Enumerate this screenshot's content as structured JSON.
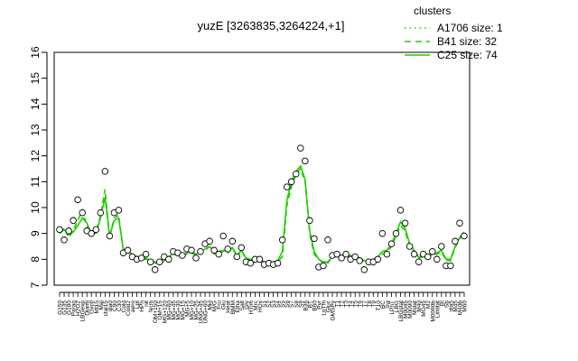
{
  "chart_data": {
    "type": "line",
    "title": "yuzE [3263835,3264224,+1]",
    "ylim": [
      7,
      16
    ],
    "yticks": [
      "7",
      "8",
      "9",
      "10",
      "11",
      "12",
      "13",
      "14",
      "15",
      "16"
    ],
    "legend": {
      "title": "clusters",
      "placement": "top-right",
      "entries": [
        {
          "label": "A1706 size: 1",
          "style": "dotted"
        },
        {
          "label": "B41 size: 32",
          "style": "dashed"
        },
        {
          "label": "C25 size: 74",
          "style": "solid"
        }
      ]
    },
    "color": "#22cc00",
    "x_labels": [
      "G150",
      "G135",
      "G180",
      "Paraq",
      "H2O2",
      "LBGexp",
      "Diami",
      "Oxctl",
      "Mt15",
      "Mal",
      "ctal15",
      "dia0",
      "C90",
      "C30",
      "Cold",
      "Cold2",
      "aero",
      "Lpt",
      "HPh",
      "nit",
      "ferm",
      "OM+150",
      "OM+15",
      "MG+120",
      "MG+60",
      "MG+45",
      "MG+30",
      "MG+15",
      "MG+5",
      "MG+10",
      "MG+25",
      "UNG+45",
      "UNG+60",
      "Mid",
      "M/G",
      "Fru",
      "Glu",
      "Heat",
      "BMM",
      "Etha",
      "Salt",
      "Gly",
      "HTim",
      "Mrc",
      "HOx",
      "S1",
      "S2",
      "S3",
      "S4",
      "S5",
      "S6",
      "S7",
      "S8",
      "S9",
      "B36",
      "BT",
      "B60",
      "Pyr",
      "LoTm",
      "Gluc",
      "GMSPy",
      "T1",
      "T2",
      "T3",
      "T4",
      "T5",
      "T6",
      "T7",
      "T8",
      "T9",
      "T10",
      "BC",
      "Sw",
      "LPhT",
      "LBG",
      "LBGstat",
      "M0045",
      "M0090",
      "Mstat",
      "M40",
      "MG45",
      "M2",
      "M0090b",
      "Limitat",
      "BI",
      "Sb",
      "dia5",
      "M45",
      "M40b",
      "M60"
    ],
    "series": [
      {
        "values": [
          9.05,
          9.2,
          8.85,
          9.1,
          9.5,
          9.9,
          9.3,
          8.95,
          9.05,
          9.7,
          10.7,
          8.85,
          9.6,
          9.7,
          8.35,
          8.3,
          8.15,
          8.05,
          8.0,
          8.05,
          7.95,
          7.9,
          7.8,
          7.95,
          8.05,
          8.2,
          8.15,
          8.1,
          8.2,
          8.25,
          8.15,
          8.3,
          8.35,
          8.5,
          8.2,
          8.25,
          8.3,
          8.25,
          8.45,
          8.1,
          8.35,
          8.0,
          7.95,
          7.95,
          8.0,
          7.85,
          7.85,
          7.85,
          7.9,
          8.1,
          10.1,
          10.8,
          11.3,
          11.5,
          11.0,
          9.0,
          8.2,
          8.0,
          7.85,
          7.85,
          8.1,
          8.1,
          8.1,
          8.15,
          8.1,
          8.05,
          8.0,
          7.9,
          7.85,
          7.95,
          8.0,
          8.2,
          8.25,
          8.5,
          8.9,
          9.3,
          9.1,
          8.5,
          8.3,
          8.05,
          8.1,
          8.1,
          8.15,
          8.2,
          8.3,
          7.95,
          7.95,
          8.45,
          8.8,
          9.0
        ]
      },
      {
        "values": [
          9.0,
          9.15,
          8.95,
          9.05,
          9.3,
          9.6,
          9.4,
          9.0,
          9.0,
          9.6,
          10.4,
          8.9,
          9.5,
          9.6,
          8.4,
          8.3,
          8.2,
          8.1,
          8.0,
          8.0,
          7.95,
          7.85,
          7.85,
          7.95,
          8.1,
          8.25,
          8.2,
          8.15,
          8.25,
          8.3,
          8.2,
          8.3,
          8.4,
          8.5,
          8.3,
          8.3,
          8.35,
          8.3,
          8.45,
          8.15,
          8.35,
          8.05,
          8.0,
          7.95,
          8.0,
          7.9,
          7.9,
          7.9,
          7.95,
          8.3,
          10.3,
          11.0,
          11.4,
          11.6,
          11.1,
          9.1,
          8.3,
          8.0,
          7.9,
          7.9,
          8.1,
          8.15,
          8.15,
          8.2,
          8.15,
          8.1,
          8.05,
          7.95,
          7.9,
          8.0,
          8.1,
          8.3,
          8.35,
          8.6,
          9.0,
          9.45,
          9.2,
          8.6,
          8.35,
          8.1,
          8.15,
          8.15,
          8.2,
          8.25,
          8.35,
          8.0,
          8.0,
          8.5,
          8.85,
          9.05
        ]
      }
    ],
    "points": [
      9.15,
      8.75,
      9.1,
      9.5,
      10.3,
      9.8,
      9.1,
      9.0,
      9.15,
      9.8,
      11.4,
      8.9,
      9.8,
      9.9,
      8.25,
      8.35,
      8.1,
      8.0,
      8.05,
      8.2,
      7.9,
      7.6,
      7.9,
      8.1,
      8.0,
      8.3,
      8.25,
      8.15,
      8.4,
      8.35,
      8.05,
      8.3,
      8.6,
      8.7,
      8.35,
      8.2,
      8.9,
      8.4,
      8.7,
      8.1,
      8.45,
      7.9,
      7.85,
      8.0,
      8.0,
      7.8,
      7.85,
      7.8,
      7.85,
      8.75,
      10.8,
      11.0,
      11.3,
      12.3,
      11.8,
      9.5,
      8.8,
      7.7,
      7.75,
      8.75,
      8.15,
      8.2,
      8.05,
      8.2,
      8.0,
      8.1,
      7.95,
      7.6,
      7.9,
      7.9,
      8.0,
      9.0,
      8.2,
      8.6,
      9.0,
      9.9,
      9.4,
      8.5,
      8.2,
      7.9,
      8.2,
      8.1,
      8.3,
      8.0,
      8.5,
      7.75,
      7.75,
      8.7,
      9.4,
      8.9
    ]
  }
}
